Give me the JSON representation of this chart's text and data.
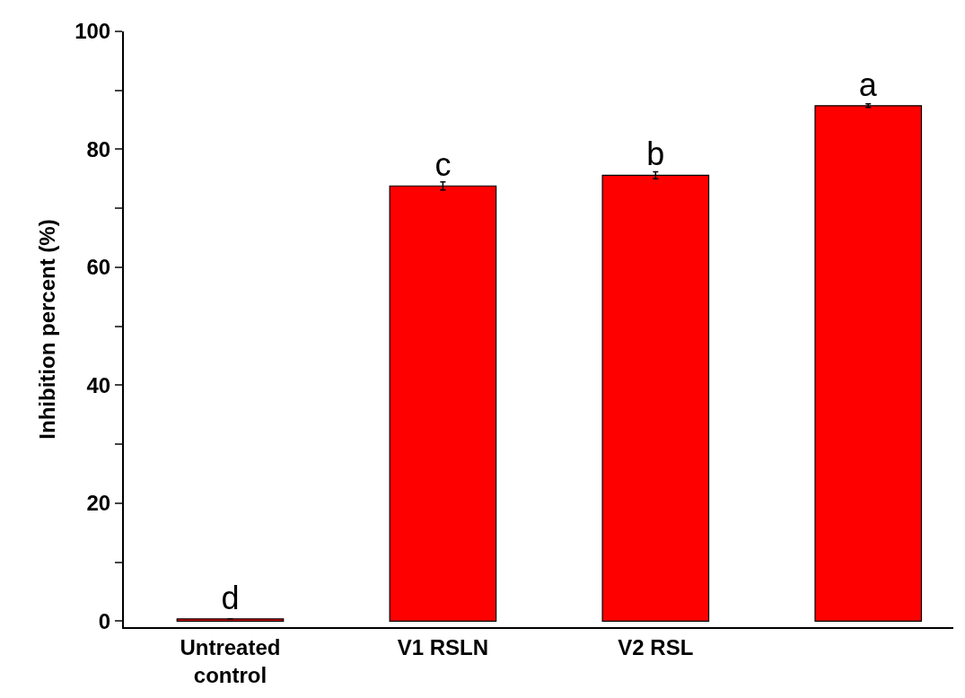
{
  "chart_data": {
    "type": "bar",
    "ylabel": "Inhibition percent (%)",
    "categories": [
      "Untreated control",
      "V1 RSLN",
      "V2 RSL",
      null
    ],
    "values": [
      0.4,
      73.8,
      75.6,
      87.4
    ],
    "errors": [
      null,
      0.7,
      0.6,
      0.3
    ],
    "value_labels": [
      "d",
      "c",
      "b",
      "a"
    ],
    "color": "#ff0000",
    "ylim": [
      -1,
      100
    ],
    "yticks": [
      0,
      {
        "value": 10,
        "label": null
      },
      20,
      {
        "value": 30,
        "label": null
      },
      40,
      {
        "value": 50,
        "label": null
      },
      60,
      {
        "value": 70,
        "label": null
      },
      80,
      {
        "value": 90,
        "label": null
      },
      100
    ]
  }
}
